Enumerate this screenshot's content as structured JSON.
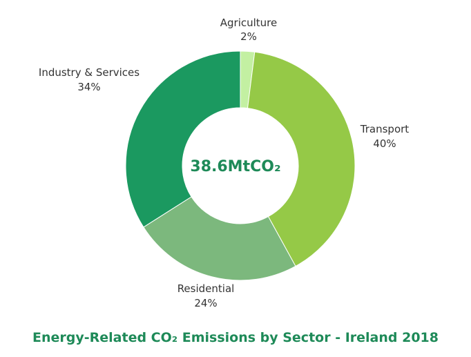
{
  "chart_data": {
    "type": "pie",
    "style": "donut",
    "title": "Energy-Related CO₂ Emissions by Sector - Ireland 2018",
    "center_label": "38.6MtCO₂",
    "slices": [
      {
        "name": "Agriculture",
        "value": 2,
        "value_label": "2%",
        "color": "#c3f0a2"
      },
      {
        "name": "Transport",
        "value": 40,
        "value_label": "40%",
        "color": "#95c947"
      },
      {
        "name": "Residential",
        "value": 24,
        "value_label": "24%",
        "color": "#7cb87d"
      },
      {
        "name": "Industry & Services",
        "value": 34,
        "value_label": "34%",
        "color": "#1b9960"
      }
    ],
    "legend": "none"
  },
  "colors": {
    "title": "#1e8a58",
    "center_label": "#1e8a58",
    "label_text": "#333333",
    "background": "#ffffff"
  }
}
